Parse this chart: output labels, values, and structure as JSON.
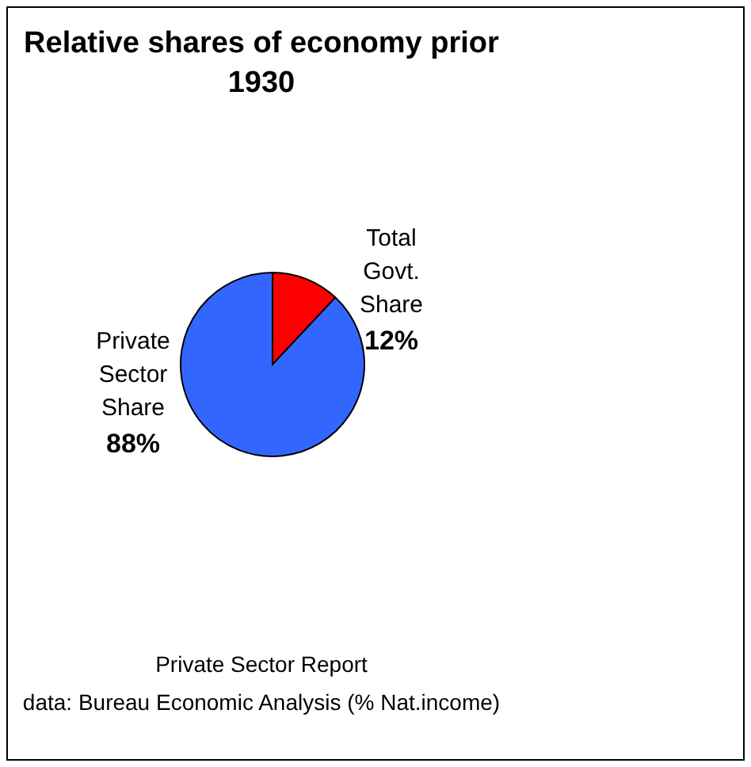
{
  "chart_data": {
    "type": "pie",
    "title": "Relative shares of economy prior 1930",
    "categories": [
      "Total Govt. Share",
      "Private Sector Share"
    ],
    "values": [
      12,
      88
    ],
    "value_labels": [
      "12%",
      "88%"
    ],
    "colors": [
      "#ff0000",
      "#3366ff"
    ],
    "annotations": [
      "Private Sector Report",
      "data: Bureau Economic Analysis (% Nat.income)"
    ]
  }
}
